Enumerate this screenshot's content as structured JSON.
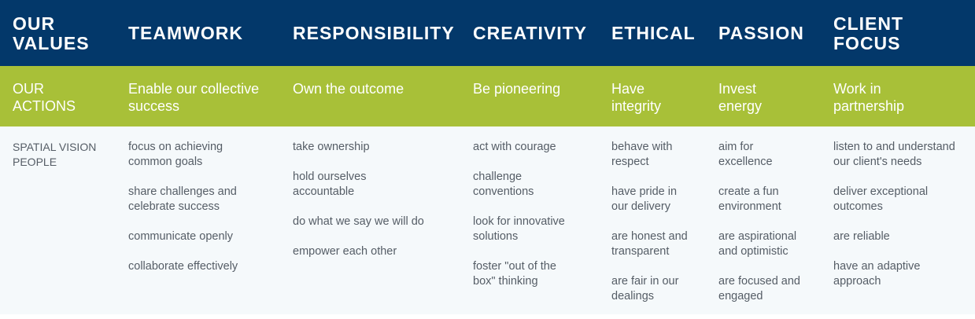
{
  "header": {
    "values_label": [
      "OUR",
      "VALUES"
    ],
    "values": [
      {
        "title": [
          "TEAMWORK"
        ]
      },
      {
        "title": [
          "RESPONSIBILITY"
        ]
      },
      {
        "title": [
          "CREATIVITY"
        ]
      },
      {
        "title": [
          "ETHICAL"
        ]
      },
      {
        "title": [
          "PASSION"
        ]
      },
      {
        "title": [
          "CLIENT",
          "FOCUS"
        ]
      }
    ]
  },
  "actions": {
    "label": [
      "OUR",
      "ACTIONS"
    ],
    "items": [
      [
        "Enable our collective",
        "success"
      ],
      [
        "Own the outcome"
      ],
      [
        "Be pioneering"
      ],
      [
        "Have",
        "integrity"
      ],
      [
        "Invest",
        "energy"
      ],
      [
        "Work in",
        "partnership"
      ]
    ]
  },
  "people": {
    "label": [
      "SPATIAL VISION",
      "PEOPLE"
    ],
    "columns": [
      [
        [
          "focus on achieving",
          "common goals"
        ],
        [
          "share challenges and",
          "celebrate success"
        ],
        [
          "communicate openly"
        ],
        [
          "collaborate effectively"
        ]
      ],
      [
        [
          "take ownership"
        ],
        [
          "hold ourselves",
          "accountable"
        ],
        [
          "do what we say we will do"
        ],
        [
          "empower each other"
        ]
      ],
      [
        [
          "act with courage"
        ],
        [
          "challenge",
          "conventions"
        ],
        [
          "look for innovative",
          "solutions"
        ],
        [
          "foster \"out of the",
          "box\" thinking"
        ]
      ],
      [
        [
          "behave with",
          "respect"
        ],
        [
          "have pride in",
          "our delivery"
        ],
        [
          "are honest and",
          "transparent"
        ],
        [
          "are fair in our",
          "dealings"
        ]
      ],
      [
        [
          "aim for",
          "excellence"
        ],
        [
          "create a fun",
          "environment"
        ],
        [
          "are aspirational",
          "and optimistic"
        ],
        [
          "are focused and",
          "engaged"
        ]
      ],
      [
        [
          "listen to and understand",
          "our client's needs"
        ],
        [
          "deliver exceptional",
          "outcomes"
        ],
        [
          "are reliable"
        ],
        [
          "have an adaptive",
          "approach"
        ]
      ]
    ]
  },
  "colors": {
    "header_bg": "#03386a",
    "actions_bg": "#a8c038",
    "people_bg": "#f5f9fb",
    "people_text": "#555d66"
  }
}
